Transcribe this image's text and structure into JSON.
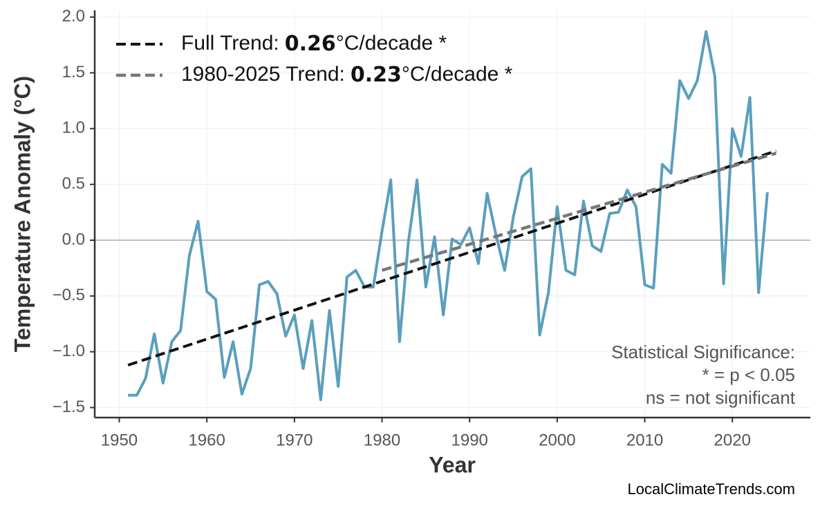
{
  "chart_data": {
    "type": "line",
    "xlabel": "Year",
    "ylabel": "Temperature Anomaly (°C)",
    "x": [
      1951,
      1952,
      1953,
      1954,
      1955,
      1956,
      1957,
      1958,
      1959,
      1960,
      1961,
      1962,
      1963,
      1964,
      1965,
      1966,
      1967,
      1968,
      1969,
      1970,
      1971,
      1972,
      1973,
      1974,
      1975,
      1976,
      1977,
      1978,
      1979,
      1980,
      1981,
      1982,
      1983,
      1984,
      1985,
      1986,
      1987,
      1988,
      1989,
      1990,
      1991,
      1992,
      1993,
      1994,
      1995,
      1996,
      1997,
      1998,
      1999,
      2000,
      2001,
      2002,
      2003,
      2004,
      2005,
      2006,
      2007,
      2008,
      2009,
      2010,
      2011,
      2012,
      2013,
      2014,
      2015,
      2016,
      2017,
      2018,
      2019,
      2020,
      2021,
      2022,
      2023,
      2024
    ],
    "series": [
      {
        "color": "#5a9fbd",
        "width": 4,
        "dashed": false,
        "values": [
          -1.39,
          -1.39,
          -1.24,
          -0.84,
          -1.28,
          -0.91,
          -0.81,
          -0.14,
          0.17,
          -0.46,
          -0.53,
          -1.23,
          -0.91,
          -1.38,
          -1.15,
          -0.4,
          -0.37,
          -0.48,
          -0.86,
          -0.67,
          -1.15,
          -0.72,
          -1.43,
          -0.63,
          -1.31,
          -0.33,
          -0.27,
          -0.42,
          -0.42,
          0.08,
          0.54,
          -0.91,
          -0.02,
          0.54,
          -0.42,
          0.03,
          -0.67,
          0.01,
          -0.04,
          0.11,
          -0.21,
          0.42,
          0.05,
          -0.27,
          0.21,
          0.57,
          0.64,
          -0.85,
          -0.47,
          0.3,
          -0.27,
          -0.31,
          0.35,
          -0.05,
          -0.1,
          0.24,
          0.25,
          0.45,
          0.3,
          -0.4,
          -0.43,
          0.68,
          0.6,
          1.43,
          1.27,
          1.43,
          1.87,
          1.47,
          -0.39,
          1.0,
          0.75,
          1.28,
          -0.47,
          0.43
        ]
      },
      {
        "name": "Full Trend:",
        "slope": 0.26,
        "unit": "°C/decade *",
        "color": "#111111",
        "width": 4,
        "dashed": true,
        "x": [
          1951,
          2025
        ],
        "values": [
          -1.12,
          0.8
        ]
      },
      {
        "name": "1980-2025 Trend:",
        "slope": 0.23,
        "unit": "°C/decade *",
        "color": "#777777",
        "width": 4.5,
        "dashed": true,
        "x": [
          1980,
          2025
        ],
        "values": [
          -0.27,
          0.78
        ]
      }
    ],
    "xlim": [
      1947.2,
      2028.9
    ],
    "xticks": [
      1950,
      1960,
      1970,
      1980,
      1990,
      2000,
      2010,
      2020
    ],
    "ylim": [
      -1.59,
      2.06
    ],
    "yticks": [
      {
        "value": -1.5,
        "label": "−1.5"
      },
      {
        "value": -1.0,
        "label": "−1.0"
      },
      {
        "value": -0.5,
        "label": "−0.5"
      },
      {
        "value": 0,
        "label": "0.0"
      },
      0.5,
      {
        "value": 1.0,
        "label": "1.0"
      },
      1.5,
      {
        "value": 2.0,
        "label": "2.0"
      }
    ],
    "grid": true,
    "zero_line": true,
    "legend": "upper left",
    "annotations": [
      "Statistical Significance:",
      "* = p < 0.05",
      "ns = not significant"
    ],
    "source": "LocalClimateTrends.com"
  }
}
